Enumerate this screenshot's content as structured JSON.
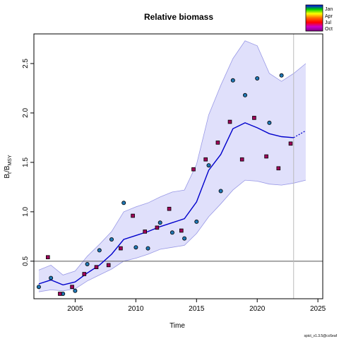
{
  "chart_data": {
    "type": "scatter",
    "title": "Relative biomass",
    "xlabel": "Time",
    "ylabel_main": "B",
    "ylabel_sub1": "t",
    "ylabel_sep": "/B",
    "ylabel_sub2": "MSY",
    "xlim": [
      2001.6,
      2025.4
    ],
    "ylim": [
      0.12,
      2.8
    ],
    "xticks": [
      2005,
      2010,
      2015,
      2020,
      2025
    ],
    "yticks": [
      0.5,
      1.0,
      1.5,
      2.0,
      2.5
    ],
    "xtick_labels": [
      "2005",
      "2010",
      "2015",
      "2020",
      "2025"
    ],
    "ytick_labels": [
      "0.5",
      "1.0",
      "1.5",
      "2.0",
      "2.5"
    ],
    "reference_line_y": 0.5,
    "vertical_line_x": 2023,
    "footer": "spict_v1.3.5@cc6eaf",
    "legend": {
      "placement": "top-right",
      "entries": [
        "Jan",
        "Apr",
        "Jul",
        "Oct"
      ],
      "colors": [
        "#0000ff",
        "#00cc00",
        "#ffff00",
        "#ff6600",
        "#ff0000",
        "#cc00cc",
        "#800080"
      ]
    },
    "colors": {
      "estimate_line": "#0000cc",
      "ci_fill": "#e0e0fb",
      "ci_line": "#9999e6",
      "jan_points": "#1f77b4",
      "oct_points": "#a0005a"
    },
    "ci_lower": {
      "x": [
        2002.0,
        2003.0,
        2004.0,
        2005.0,
        2006.0,
        2007.0,
        2008.0,
        2009.0,
        2010.0,
        2011.0,
        2012.0,
        2013.0,
        2014.0,
        2015.0,
        2016.0,
        2017.0,
        2018.0,
        2019.0,
        2020.0,
        2021.0,
        2022.0,
        2023.0,
        2024.0
      ],
      "y": [
        0.19,
        0.21,
        0.2,
        0.22,
        0.3,
        0.36,
        0.42,
        0.5,
        0.53,
        0.57,
        0.62,
        0.64,
        0.66,
        0.78,
        0.95,
        1.08,
        1.22,
        1.32,
        1.31,
        1.28,
        1.27,
        1.29,
        1.32
      ]
    },
    "ci_upper": {
      "x": [
        2002.0,
        2003.0,
        2004.0,
        2005.0,
        2006.0,
        2007.0,
        2008.0,
        2009.0,
        2010.0,
        2011.0,
        2012.0,
        2013.0,
        2014.0,
        2015.0,
        2016.0,
        2017.0,
        2018.0,
        2019.0,
        2020.0,
        2021.0,
        2022.0,
        2023.0,
        2024.0
      ],
      "y": [
        0.41,
        0.46,
        0.36,
        0.4,
        0.55,
        0.67,
        0.8,
        1.0,
        1.05,
        1.09,
        1.15,
        1.2,
        1.22,
        1.48,
        1.98,
        2.28,
        2.55,
        2.73,
        2.68,
        2.4,
        2.32,
        2.4,
        2.5
      ]
    },
    "estimate": {
      "x": [
        2002.0,
        2003.0,
        2004.0,
        2005.0,
        2006.0,
        2007.0,
        2008.0,
        2009.0,
        2010.0,
        2011.0,
        2012.0,
        2013.0,
        2014.0,
        2015.0,
        2016.0,
        2017.0,
        2018.0,
        2019.0,
        2020.0,
        2021.0,
        2022.0,
        2023.0
      ],
      "y": [
        0.27,
        0.31,
        0.26,
        0.29,
        0.38,
        0.46,
        0.57,
        0.72,
        0.76,
        0.8,
        0.85,
        0.89,
        0.93,
        1.1,
        1.42,
        1.58,
        1.84,
        1.9,
        1.85,
        1.79,
        1.76,
        1.75
      ]
    },
    "forecast": {
      "x": [
        2023.0,
        2024.0
      ],
      "y": [
        1.75,
        1.82
      ]
    },
    "series": [
      {
        "season": "Jan",
        "x": [
          2002.0,
          2003.0,
          2004.0,
          2005.0,
          2006.0,
          2007.0,
          2008.0,
          2009.0,
          2010.0,
          2011.0,
          2012.0,
          2013.0,
          2014.0,
          2015.0,
          2016.0,
          2017.0,
          2018.0,
          2019.0,
          2020.0,
          2021.0,
          2022.0
        ],
        "y": [
          0.24,
          0.33,
          0.17,
          0.2,
          0.47,
          0.61,
          0.72,
          1.09,
          0.64,
          0.63,
          0.89,
          0.79,
          0.73,
          0.9,
          1.47,
          1.21,
          2.33,
          2.18,
          2.35,
          1.9,
          2.38
        ]
      },
      {
        "season": "Oct",
        "x": [
          2002.75,
          2003.75,
          2004.75,
          2005.75,
          2006.75,
          2007.75,
          2008.75,
          2009.75,
          2010.75,
          2011.75,
          2012.75,
          2013.75,
          2014.75,
          2015.75,
          2016.75,
          2017.75,
          2018.75,
          2019.75,
          2020.75,
          2021.75,
          2022.75
        ],
        "y": [
          0.54,
          0.17,
          0.24,
          0.37,
          0.44,
          0.46,
          0.63,
          0.96,
          0.8,
          0.84,
          1.03,
          0.81,
          1.43,
          1.53,
          1.7,
          1.91,
          1.53,
          1.95,
          1.56,
          1.44,
          1.69
        ]
      }
    ]
  }
}
